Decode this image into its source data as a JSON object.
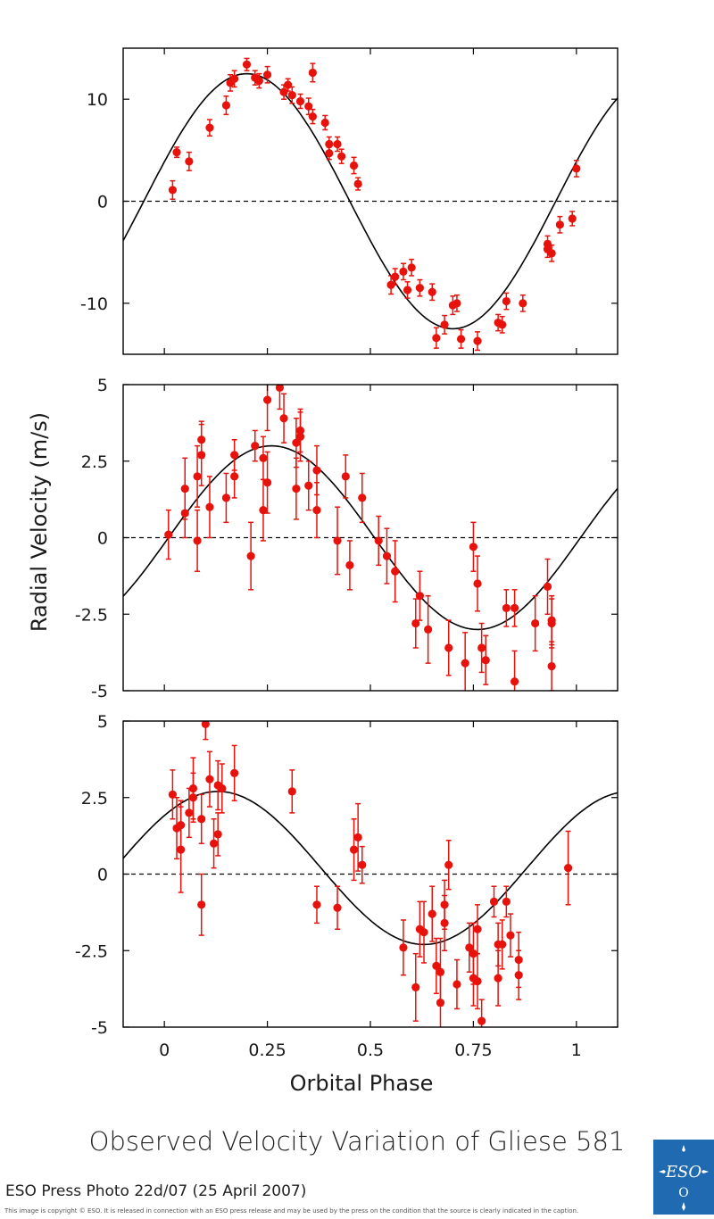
{
  "figure": {
    "title": "Observed Velocity Variation of Gliese 581",
    "credit": "ESO Press Photo 22d/07 (25 April 2007)",
    "copyright": "This image is copyright © ESO. It is released in connection with an ESO press release and may be used by the press on the condition that the source is clearly indicated in the caption.",
    "logo_text": "ESO",
    "marker_color": "#e8120c",
    "curve_color": "#000000"
  },
  "chart_data": [
    {
      "type": "scatter",
      "xlabel": "",
      "ylabel": "Radial Velocity (m/s)",
      "xlim": [
        -0.1,
        1.1
      ],
      "ylim": [
        -15,
        15
      ],
      "yticks": [
        10,
        0,
        -10
      ],
      "ytick_labels": [
        "10",
        "0",
        "-10"
      ],
      "xticks": [
        0,
        0.25,
        0.5,
        0.75,
        1
      ],
      "xtick_labels": [],
      "zero_line": "dashed",
      "model": {
        "amplitude": 12.5,
        "peak_phase": 0.2
      },
      "points": [
        {
          "x": 0.02,
          "y": 1.1,
          "err": 0.9
        },
        {
          "x": 0.03,
          "y": 4.8,
          "err": 0.5
        },
        {
          "x": 0.06,
          "y": 3.9,
          "err": 0.9
        },
        {
          "x": 0.11,
          "y": 7.2,
          "err": 0.8
        },
        {
          "x": 0.15,
          "y": 9.4,
          "err": 0.9
        },
        {
          "x": 0.16,
          "y": 11.6,
          "err": 0.8
        },
        {
          "x": 0.17,
          "y": 12.0,
          "err": 0.8
        },
        {
          "x": 0.2,
          "y": 13.4,
          "err": 0.6
        },
        {
          "x": 0.22,
          "y": 12.1,
          "err": 0.7
        },
        {
          "x": 0.23,
          "y": 11.8,
          "err": 0.7
        },
        {
          "x": 0.25,
          "y": 12.4,
          "err": 0.8
        },
        {
          "x": 0.29,
          "y": 10.7,
          "err": 0.7
        },
        {
          "x": 0.3,
          "y": 11.4,
          "err": 0.6
        },
        {
          "x": 0.31,
          "y": 10.4,
          "err": 0.8
        },
        {
          "x": 0.33,
          "y": 9.8,
          "err": 0.7
        },
        {
          "x": 0.35,
          "y": 9.3,
          "err": 0.8
        },
        {
          "x": 0.36,
          "y": 8.3,
          "err": 0.7
        },
        {
          "x": 0.36,
          "y": 12.6,
          "err": 0.9
        },
        {
          "x": 0.39,
          "y": 7.7,
          "err": 0.7
        },
        {
          "x": 0.4,
          "y": 5.6,
          "err": 0.7
        },
        {
          "x": 0.4,
          "y": 4.7,
          "err": 0.6
        },
        {
          "x": 0.42,
          "y": 5.6,
          "err": 0.7
        },
        {
          "x": 0.43,
          "y": 4.4,
          "err": 0.7
        },
        {
          "x": 0.46,
          "y": 3.5,
          "err": 0.8
        },
        {
          "x": 0.47,
          "y": 1.7,
          "err": 0.6
        },
        {
          "x": 0.55,
          "y": -8.2,
          "err": 0.9
        },
        {
          "x": 0.56,
          "y": -7.4,
          "err": 0.8
        },
        {
          "x": 0.58,
          "y": -6.9,
          "err": 0.8
        },
        {
          "x": 0.59,
          "y": -8.7,
          "err": 0.8
        },
        {
          "x": 0.6,
          "y": -6.5,
          "err": 0.8
        },
        {
          "x": 0.62,
          "y": -8.5,
          "err": 0.8
        },
        {
          "x": 0.65,
          "y": -8.9,
          "err": 0.8
        },
        {
          "x": 0.66,
          "y": -13.4,
          "err": 1.0
        },
        {
          "x": 0.68,
          "y": -12.1,
          "err": 0.9
        },
        {
          "x": 0.7,
          "y": -10.2,
          "err": 0.9
        },
        {
          "x": 0.71,
          "y": -10.0,
          "err": 0.8
        },
        {
          "x": 0.72,
          "y": -13.5,
          "err": 0.9
        },
        {
          "x": 0.76,
          "y": -13.7,
          "err": 0.9
        },
        {
          "x": 0.81,
          "y": -11.9,
          "err": 0.8
        },
        {
          "x": 0.82,
          "y": -12.1,
          "err": 0.8
        },
        {
          "x": 0.83,
          "y": -9.8,
          "err": 0.8
        },
        {
          "x": 0.87,
          "y": -10.0,
          "err": 0.8
        },
        {
          "x": 0.93,
          "y": -4.2,
          "err": 0.8
        },
        {
          "x": 0.93,
          "y": -4.7,
          "err": 0.8
        },
        {
          "x": 0.94,
          "y": -5.1,
          "err": 0.8
        },
        {
          "x": 0.96,
          "y": -2.3,
          "err": 0.8
        },
        {
          "x": 0.99,
          "y": -1.7,
          "err": 0.7
        },
        {
          "x": 1.0,
          "y": 3.2,
          "err": 0.8
        }
      ]
    },
    {
      "type": "scatter",
      "xlabel": "",
      "ylabel": "",
      "xlim": [
        -0.1,
        1.1
      ],
      "ylim": [
        -5,
        5
      ],
      "yticks": [
        5,
        2.5,
        0,
        -2.5,
        -5
      ],
      "ytick_labels": [
        "5",
        "2.5",
        "0",
        "-2.5",
        "-5"
      ],
      "xticks": [
        0,
        0.25,
        0.5,
        0.75,
        1
      ],
      "xtick_labels": [],
      "zero_line": "dashed",
      "model": {
        "amplitude": 3.0,
        "peak_phase": 0.26
      },
      "points": [
        {
          "x": 0.01,
          "y": 0.1,
          "err": 0.8
        },
        {
          "x": 0.05,
          "y": 0.8,
          "err": 0.8
        },
        {
          "x": 0.05,
          "y": 1.6,
          "err": 1.0
        },
        {
          "x": 0.08,
          "y": -0.1,
          "err": 1.0
        },
        {
          "x": 0.08,
          "y": 2.0,
          "err": 1.0
        },
        {
          "x": 0.09,
          "y": 2.7,
          "err": 1.0
        },
        {
          "x": 0.09,
          "y": 3.2,
          "err": 0.6
        },
        {
          "x": 0.11,
          "y": 1.0,
          "err": 1.0
        },
        {
          "x": 0.15,
          "y": 1.3,
          "err": 0.8
        },
        {
          "x": 0.17,
          "y": 2.7,
          "err": 0.5
        },
        {
          "x": 0.17,
          "y": 2.0,
          "err": 0.7
        },
        {
          "x": 0.21,
          "y": -0.6,
          "err": 1.1
        },
        {
          "x": 0.22,
          "y": 3.0,
          "err": 0.5
        },
        {
          "x": 0.24,
          "y": 0.9,
          "err": 1.0
        },
        {
          "x": 0.24,
          "y": 2.6,
          "err": 0.7
        },
        {
          "x": 0.25,
          "y": 1.8,
          "err": 1.0
        },
        {
          "x": 0.25,
          "y": 4.5,
          "err": 1.0
        },
        {
          "x": 0.28,
          "y": 4.9,
          "err": 0.7
        },
        {
          "x": 0.29,
          "y": 3.9,
          "err": 0.8
        },
        {
          "x": 0.32,
          "y": 3.1,
          "err": 0.8
        },
        {
          "x": 0.32,
          "y": 1.6,
          "err": 1.0
        },
        {
          "x": 0.33,
          "y": 3.3,
          "err": 0.8
        },
        {
          "x": 0.33,
          "y": 3.5,
          "err": 0.7
        },
        {
          "x": 0.35,
          "y": 1.7,
          "err": 0.8
        },
        {
          "x": 0.37,
          "y": 0.9,
          "err": 0.9
        },
        {
          "x": 0.37,
          "y": 2.2,
          "err": 0.8
        },
        {
          "x": 0.42,
          "y": -0.1,
          "err": 1.1
        },
        {
          "x": 0.44,
          "y": 2.0,
          "err": 0.7
        },
        {
          "x": 0.45,
          "y": -0.9,
          "err": 0.8
        },
        {
          "x": 0.48,
          "y": 1.3,
          "err": 0.8
        },
        {
          "x": 0.52,
          "y": -0.1,
          "err": 0.8
        },
        {
          "x": 0.54,
          "y": -0.6,
          "err": 0.9
        },
        {
          "x": 0.56,
          "y": -1.1,
          "err": 1.0
        },
        {
          "x": 0.61,
          "y": -2.8,
          "err": 0.8
        },
        {
          "x": 0.62,
          "y": -1.9,
          "err": 0.8
        },
        {
          "x": 0.64,
          "y": -3.0,
          "err": 1.1
        },
        {
          "x": 0.69,
          "y": -3.6,
          "err": 0.9
        },
        {
          "x": 0.73,
          "y": -4.1,
          "err": 1.0
        },
        {
          "x": 0.75,
          "y": -0.3,
          "err": 0.8
        },
        {
          "x": 0.76,
          "y": -1.5,
          "err": 0.9
        },
        {
          "x": 0.77,
          "y": -3.6,
          "err": 0.8
        },
        {
          "x": 0.78,
          "y": -4.0,
          "err": 0.8
        },
        {
          "x": 0.83,
          "y": -2.3,
          "err": 0.6
        },
        {
          "x": 0.85,
          "y": -2.3,
          "err": 0.6
        },
        {
          "x": 0.85,
          "y": -4.7,
          "err": 1.0
        },
        {
          "x": 0.9,
          "y": -2.8,
          "err": 0.9
        },
        {
          "x": 0.93,
          "y": -1.6,
          "err": 0.9
        },
        {
          "x": 0.94,
          "y": -2.7,
          "err": 0.8
        },
        {
          "x": 0.94,
          "y": -4.2,
          "err": 0.8
        },
        {
          "x": 0.94,
          "y": -2.8,
          "err": 0.8
        }
      ]
    },
    {
      "type": "scatter",
      "xlabel": "Orbital Phase",
      "ylabel": "",
      "xlim": [
        -0.1,
        1.1
      ],
      "ylim": [
        -5,
        5
      ],
      "yticks": [
        5,
        2.5,
        0,
        -2.5,
        -5
      ],
      "ytick_labels": [
        "5",
        "2.5",
        "0",
        "-2.5",
        "-5"
      ],
      "xticks": [
        0,
        0.25,
        0.5,
        0.75,
        1
      ],
      "xtick_labels": [
        "0",
        "0.25",
        "0.5",
        "0.75",
        "1"
      ],
      "zero_line": "dashed",
      "model": {
        "amplitude": 2.5,
        "peak_phase": 0.13,
        "offset": 0.2
      },
      "points": [
        {
          "x": 0.02,
          "y": 2.6,
          "err": 0.8
        },
        {
          "x": 0.03,
          "y": 1.5,
          "err": 1.0
        },
        {
          "x": 0.04,
          "y": 0.8,
          "err": 1.4
        },
        {
          "x": 0.04,
          "y": 1.6,
          "err": 0.8
        },
        {
          "x": 0.06,
          "y": 2.0,
          "err": 0.8
        },
        {
          "x": 0.07,
          "y": 2.8,
          "err": 1.0
        },
        {
          "x": 0.07,
          "y": 2.5,
          "err": 0.8
        },
        {
          "x": 0.09,
          "y": 1.8,
          "err": 0.8
        },
        {
          "x": 0.09,
          "y": -1.0,
          "err": 1.0
        },
        {
          "x": 0.1,
          "y": 4.9,
          "err": 0.5
        },
        {
          "x": 0.11,
          "y": 3.1,
          "err": 0.9
        },
        {
          "x": 0.12,
          "y": 1.0,
          "err": 0.8
        },
        {
          "x": 0.13,
          "y": 1.3,
          "err": 0.7
        },
        {
          "x": 0.13,
          "y": 2.9,
          "err": 0.8
        },
        {
          "x": 0.14,
          "y": 2.8,
          "err": 0.8
        },
        {
          "x": 0.17,
          "y": 3.3,
          "err": 0.9
        },
        {
          "x": 0.31,
          "y": 2.7,
          "err": 0.7
        },
        {
          "x": 0.37,
          "y": -1.0,
          "err": 0.6
        },
        {
          "x": 0.42,
          "y": -1.1,
          "err": 0.7
        },
        {
          "x": 0.46,
          "y": 0.8,
          "err": 1.0
        },
        {
          "x": 0.47,
          "y": 1.2,
          "err": 1.1
        },
        {
          "x": 0.48,
          "y": 0.3,
          "err": 0.6
        },
        {
          "x": 0.58,
          "y": -2.4,
          "err": 0.9
        },
        {
          "x": 0.61,
          "y": -3.7,
          "err": 1.1
        },
        {
          "x": 0.62,
          "y": -1.8,
          "err": 0.9
        },
        {
          "x": 0.63,
          "y": -1.9,
          "err": 1.0
        },
        {
          "x": 0.65,
          "y": -1.3,
          "err": 0.9
        },
        {
          "x": 0.66,
          "y": -3.0,
          "err": 0.9
        },
        {
          "x": 0.67,
          "y": -3.2,
          "err": 1.1
        },
        {
          "x": 0.67,
          "y": -4.2,
          "err": 0.9
        },
        {
          "x": 0.68,
          "y": -1.6,
          "err": 0.9
        },
        {
          "x": 0.68,
          "y": -1.0,
          "err": 0.8
        },
        {
          "x": 0.69,
          "y": 0.3,
          "err": 0.8
        },
        {
          "x": 0.71,
          "y": -3.6,
          "err": 0.8
        },
        {
          "x": 0.74,
          "y": -2.4,
          "err": 0.8
        },
        {
          "x": 0.75,
          "y": -2.6,
          "err": 1.0
        },
        {
          "x": 0.75,
          "y": -3.4,
          "err": 0.9
        },
        {
          "x": 0.76,
          "y": -3.5,
          "err": 0.9
        },
        {
          "x": 0.76,
          "y": -1.8,
          "err": 0.8
        },
        {
          "x": 0.77,
          "y": -4.8,
          "err": 0.7
        },
        {
          "x": 0.8,
          "y": -0.9,
          "err": 0.5
        },
        {
          "x": 0.81,
          "y": -2.3,
          "err": 0.7
        },
        {
          "x": 0.81,
          "y": -3.4,
          "err": 0.9
        },
        {
          "x": 0.82,
          "y": -2.3,
          "err": 0.8
        },
        {
          "x": 0.83,
          "y": -0.9,
          "err": 0.5
        },
        {
          "x": 0.84,
          "y": -2.0,
          "err": 0.7
        },
        {
          "x": 0.86,
          "y": -2.8,
          "err": 0.9
        },
        {
          "x": 0.86,
          "y": -3.3,
          "err": 0.8
        },
        {
          "x": 0.98,
          "y": 0.2,
          "err": 1.2
        }
      ]
    }
  ]
}
